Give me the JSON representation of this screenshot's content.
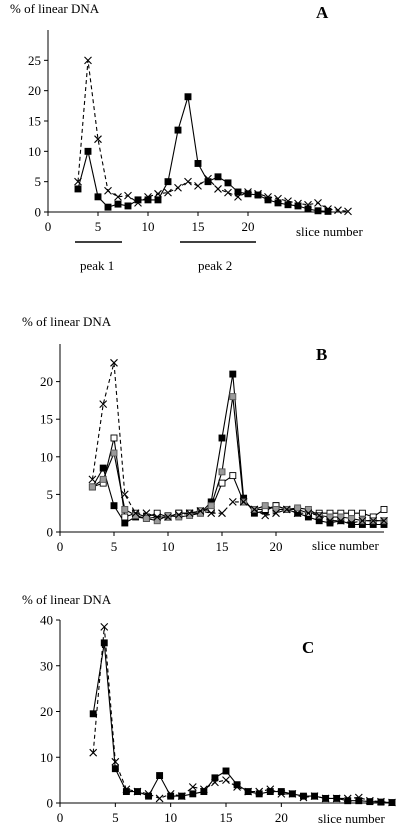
{
  "chart_data": [
    {
      "type": "line",
      "panel_label": "A",
      "ylabel": "% of linear DNA",
      "xlabel": "slice number",
      "xlim": [
        0,
        30
      ],
      "ylim": [
        0,
        30
      ],
      "xticks": [
        0,
        5,
        10,
        15,
        20
      ],
      "yticks": [
        0,
        5,
        10,
        15,
        20,
        25
      ],
      "grid": false,
      "annotations": [
        {
          "text": "peak 1",
          "x_from": 3,
          "x_to": 6.5
        },
        {
          "text": "peak 2",
          "x_from": 12,
          "x_to": 19
        }
      ],
      "series": [
        {
          "marker": "filled-square",
          "line": "solid",
          "x": [
            3,
            4,
            5,
            6,
            7,
            8,
            9,
            10,
            11,
            12,
            13,
            14,
            15,
            16,
            17,
            18,
            19,
            20,
            21,
            22,
            23,
            24,
            25,
            26,
            27,
            28
          ],
          "y": [
            3.8,
            10,
            2.5,
            0.8,
            1.3,
            1,
            2,
            2,
            2,
            5,
            13.5,
            19,
            8,
            5,
            5.8,
            4.8,
            3.3,
            3,
            2.8,
            2,
            1.5,
            1.2,
            1,
            0.5,
            0.2,
            0.1
          ]
        },
        {
          "marker": "x",
          "line": "dashed",
          "x": [
            3,
            4,
            5,
            6,
            7,
            8,
            9,
            10,
            11,
            12,
            13,
            14,
            15,
            16,
            17,
            18,
            19,
            20,
            21,
            22,
            23,
            24,
            25,
            26,
            27,
            28,
            29,
            30
          ],
          "y": [
            5,
            25,
            12,
            3.5,
            2.5,
            2.7,
            1.5,
            2.5,
            3,
            3.2,
            4,
            5,
            4.3,
            5.5,
            3.8,
            3.2,
            2.5,
            3.3,
            3,
            2.5,
            2.2,
            1.8,
            1.4,
            1.2,
            1.5,
            0.5,
            0.3,
            0.1
          ]
        }
      ]
    },
    {
      "type": "line",
      "panel_label": "B",
      "ylabel": "% of linear DNA",
      "xlabel": "slice number",
      "xlim": [
        0,
        30
      ],
      "ylim": [
        0,
        25
      ],
      "xticks": [
        0,
        5,
        10,
        15,
        20
      ],
      "yticks": [
        0,
        5,
        10,
        15,
        20
      ],
      "grid": false,
      "series": [
        {
          "marker": "filled-square",
          "line": "solid",
          "x": [
            3,
            4,
            5,
            6,
            7,
            8,
            9,
            10,
            11,
            12,
            13,
            14,
            15,
            16,
            17,
            18,
            19,
            20,
            21,
            22,
            23,
            24,
            25,
            26,
            27,
            28,
            29,
            30
          ],
          "y": [
            6,
            8.5,
            3.5,
            1.2,
            2,
            1.8,
            2,
            2,
            2.5,
            2.5,
            2.5,
            4,
            12.5,
            21,
            4.5,
            2.5,
            2.8,
            3.5,
            3,
            2.5,
            2,
            1.5,
            1.2,
            1.5,
            1,
            1,
            1,
            1
          ]
        },
        {
          "marker": "open-square",
          "line": "solid",
          "x": [
            3,
            4,
            5,
            6,
            7,
            8,
            9,
            10,
            11,
            12,
            13,
            14,
            15,
            16,
            17,
            18,
            19,
            20,
            21,
            22,
            23,
            24,
            25,
            26,
            27,
            28,
            29,
            30
          ],
          "y": [
            6,
            6.5,
            12.5,
            2,
            2.5,
            2,
            2.5,
            2,
            2.5,
            2.5,
            2.8,
            3,
            6.5,
            7.5,
            4,
            3,
            3,
            3.5,
            3,
            3,
            2.5,
            2.5,
            2.5,
            2.5,
            2.5,
            2.5,
            2,
            3
          ]
        },
        {
          "marker": "gray-square",
          "line": "solid",
          "x": [
            3,
            4,
            5,
            6,
            7,
            8,
            9,
            10,
            11,
            12,
            13,
            14,
            15,
            16,
            17,
            18,
            19,
            20,
            21,
            22,
            23,
            24,
            25,
            26,
            27,
            28,
            29,
            30
          ],
          "y": [
            6,
            7,
            10.5,
            3,
            2.2,
            1.8,
            1.5,
            2.2,
            2,
            2.2,
            2.5,
            3.5,
            8,
            18,
            4,
            3,
            3.5,
            3,
            3,
            3.2,
            3,
            2.2,
            2,
            2,
            1.8,
            1.5,
            1.5,
            1.5
          ]
        },
        {
          "marker": "x",
          "line": "dashed",
          "x": [
            3,
            4,
            5,
            6,
            7,
            8,
            9,
            10,
            11,
            12,
            13,
            14,
            15,
            16,
            17,
            18,
            19,
            20,
            21,
            22,
            23,
            24,
            25,
            26,
            27,
            28,
            29,
            30
          ],
          "y": [
            7,
            17,
            22.5,
            5,
            2.5,
            2.5,
            2,
            2,
            2.3,
            2.5,
            2.8,
            2.5,
            2.5,
            4,
            4,
            3,
            2.2,
            2.5,
            3,
            2.5,
            2.5,
            2.2,
            1.5,
            1.5,
            1.2,
            1.5,
            1.5,
            1.5
          ]
        }
      ]
    },
    {
      "type": "line",
      "panel_label": "C",
      "ylabel": "% of linear DNA",
      "xlabel": "slice number",
      "xlim": [
        0,
        30
      ],
      "ylim": [
        0,
        40
      ],
      "xticks": [
        0,
        5,
        10,
        15,
        20
      ],
      "yticks": [
        0,
        10,
        20,
        30,
        40
      ],
      "grid": false,
      "series": [
        {
          "marker": "filled-square",
          "line": "solid",
          "x": [
            3,
            4,
            5,
            6,
            7,
            8,
            9,
            10,
            11,
            12,
            13,
            14,
            15,
            16,
            17,
            18,
            19,
            20,
            21,
            22,
            23,
            24,
            25,
            26,
            27,
            28,
            29,
            30
          ],
          "y": [
            19.5,
            35,
            7.5,
            2.5,
            2.5,
            1.5,
            6,
            1.5,
            1.5,
            2,
            2.5,
            5.5,
            7,
            4,
            2.5,
            2,
            2.5,
            2.5,
            2,
            1.5,
            1.5,
            1,
            1,
            0.5,
            0.5,
            0.3,
            0.2,
            0.1
          ]
        },
        {
          "marker": "x",
          "line": "dashed",
          "x": [
            3,
            4,
            5,
            6,
            7,
            8,
            9,
            10,
            11,
            12,
            13,
            14,
            15,
            16,
            17,
            18,
            19,
            20,
            21,
            22,
            23,
            24,
            25,
            26,
            27,
            28,
            29,
            30
          ],
          "y": [
            11,
            38.5,
            9,
            3,
            2.5,
            2,
            1,
            2,
            1.5,
            3.5,
            3,
            4.5,
            5,
            3.5,
            2.5,
            2.5,
            3,
            2,
            2,
            1.2,
            1.5,
            1,
            1,
            1,
            1.2,
            0.5,
            0.3,
            0.1
          ]
        }
      ]
    }
  ]
}
